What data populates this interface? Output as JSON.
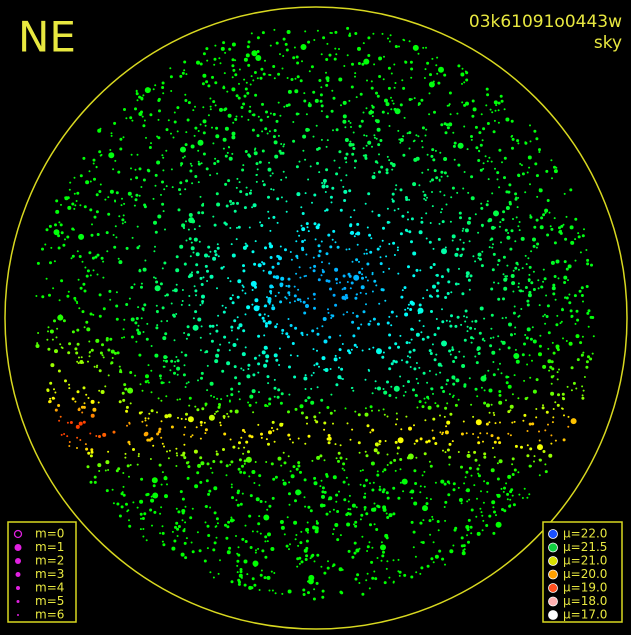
{
  "header": {
    "title": "NE",
    "id": "03k61091o0443w",
    "mode": "sky"
  },
  "magnitude_legend": [
    "m=0",
    "m=1",
    "m=2",
    "m=3",
    "m=4",
    "m=5",
    "m=6"
  ],
  "brightness_legend": [
    "μ=22.0",
    "μ=21.5",
    "μ=21.0",
    "μ=20.0",
    "μ=19.0",
    "μ=18.0",
    "μ=17.0"
  ]
}
